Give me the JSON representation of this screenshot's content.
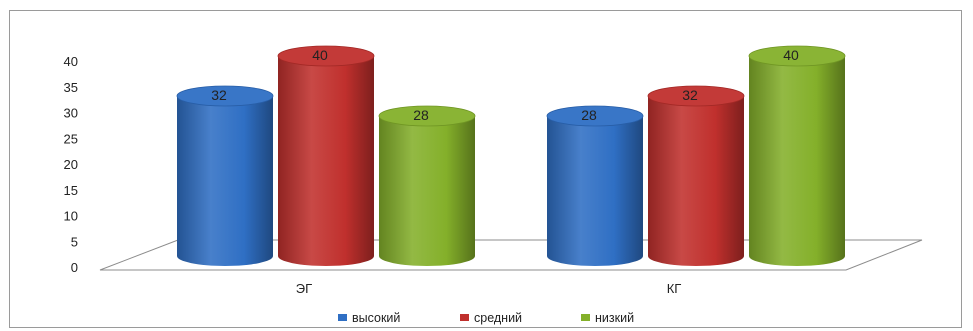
{
  "chart_data": {
    "type": "bar",
    "style": "3d-cylinder",
    "categories": [
      "ЭГ",
      "КГ"
    ],
    "series": [
      {
        "name": "высокий",
        "color": "#2f6fc4",
        "values": [
          32,
          28
        ]
      },
      {
        "name": "средний",
        "color": "#c0302d",
        "values": [
          40,
          32
        ]
      },
      {
        "name": "низкий",
        "color": "#84b02a",
        "values": [
          28,
          40
        ]
      }
    ],
    "ylim": [
      0,
      40
    ],
    "yticks": [
      0,
      5,
      10,
      15,
      20,
      25,
      30,
      35,
      40
    ],
    "legend_position": "bottom",
    "grid": false,
    "data_labels": true
  }
}
